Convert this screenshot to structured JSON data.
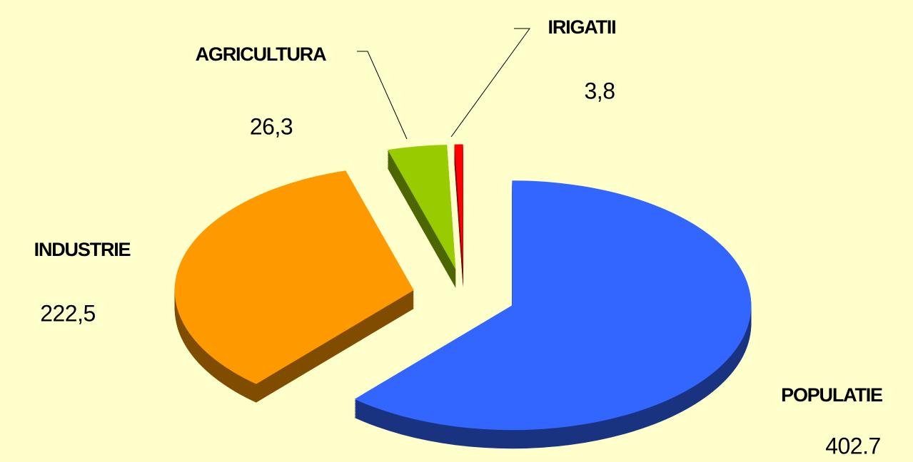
{
  "chart_data": {
    "type": "pie3d",
    "categories": [
      "POPULATIE",
      "INDUSTRIE",
      "AGRICULTURA",
      "IRIGATII"
    ],
    "values": [
      402.7,
      222.5,
      26.3,
      3.8
    ],
    "value_labels": [
      "402.7",
      "222,5",
      "26,3",
      "3,8"
    ],
    "colors": [
      "#3366ff",
      "#ff9900",
      "#99cc00",
      "#ff0000"
    ]
  }
}
